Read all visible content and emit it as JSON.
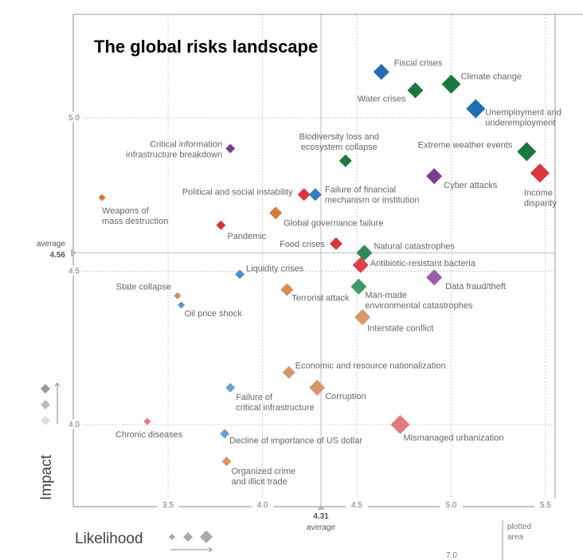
{
  "chart_data": {
    "type": "scatter",
    "title": "The global risks landscape",
    "xlabel": "Likelihood",
    "ylabel": "Impact",
    "xlim": [
      3.0,
      5.6
    ],
    "ylim": [
      3.75,
      5.25
    ],
    "x_ticks": [
      "3.5",
      "4.0",
      "4.5",
      "5.0",
      "5.5"
    ],
    "y_ticks": [
      "5.0",
      "4.5",
      "4.0"
    ],
    "grid": true,
    "averages": {
      "x": {
        "value": 4.31,
        "value_label": "4.31",
        "label": "average"
      },
      "y": {
        "value": 4.56,
        "value_label": "4.56",
        "label": "average"
      }
    },
    "legend": {
      "plotted_area": "plotted\narea",
      "stray_value": "7.0"
    },
    "points": [
      {
        "name": "Fiscal crises",
        "x": 4.63,
        "y": 5.15,
        "color": "#1f6db5",
        "size": 4
      },
      {
        "name": "Climate change",
        "x": 5.0,
        "y": 5.11,
        "color": "#1a7a3e",
        "size": 5
      },
      {
        "name": "Water crises",
        "x": 4.81,
        "y": 5.09,
        "color": "#1a7a3e",
        "size": 4
      },
      {
        "name": "Unemployment and\nunderemployment",
        "x": 5.13,
        "y": 5.03,
        "color": "#1f6db5",
        "size": 5
      },
      {
        "name": "Extreme weather events",
        "x": 5.4,
        "y": 4.89,
        "color": "#1a7a3e",
        "size": 5
      },
      {
        "name": "Income\ndisparity",
        "x": 5.47,
        "y": 4.82,
        "color": "#d9373d",
        "size": 5
      },
      {
        "name": "Cyber attacks",
        "x": 4.91,
        "y": 4.81,
        "color": "#7b3f8c",
        "size": 4
      },
      {
        "name": "Biodiversity loss and\necosystem collapse",
        "x": 4.44,
        "y": 4.86,
        "color": "#1a7a3e",
        "size": 3
      },
      {
        "name": "Critical information\ninfrastructure breakdown",
        "x": 3.83,
        "y": 4.9,
        "color": "#7b3f8c",
        "size": 2
      },
      {
        "name": "Weapons of\nmass destruction",
        "x": 3.15,
        "y": 4.74,
        "color": "#d97a3d",
        "size": 1
      },
      {
        "name": "Political and social instability",
        "x": 4.22,
        "y": 4.75,
        "color": "#d9373d",
        "size": 3
      },
      {
        "name": "Failure of financial\nmechanism or institution",
        "x": 4.28,
        "y": 4.75,
        "color": "#2f7cc4",
        "size": 3
      },
      {
        "name": "Global governance failure",
        "x": 4.07,
        "y": 4.69,
        "color": "#d97a3d",
        "size": 3
      },
      {
        "name": "Pandemic",
        "x": 3.78,
        "y": 4.65,
        "color": "#d9373d",
        "size": 2
      },
      {
        "name": "Food crises",
        "x": 4.39,
        "y": 4.59,
        "color": "#d9373d",
        "size": 3
      },
      {
        "name": "Natural catastrophes",
        "x": 4.54,
        "y": 4.56,
        "color": "#2e8b57",
        "size": 4
      },
      {
        "name": "Antibiotic-resistant bacteria",
        "x": 4.52,
        "y": 4.52,
        "color": "#dd4048",
        "size": 4
      },
      {
        "name": "Liquidity crises",
        "x": 3.88,
        "y": 4.49,
        "color": "#4a8fd0",
        "size": 2
      },
      {
        "name": "Data fraud/theft",
        "x": 4.91,
        "y": 4.48,
        "color": "#9a5aa8",
        "size": 4
      },
      {
        "name": "Man-made\nenvironmental catastrophes",
        "x": 4.51,
        "y": 4.45,
        "color": "#3d9a66",
        "size": 4
      },
      {
        "name": "State collapse",
        "x": 3.55,
        "y": 4.42,
        "color": "#d98a55",
        "size": 1
      },
      {
        "name": "Terrorist attack",
        "x": 4.13,
        "y": 4.44,
        "color": "#d98a55",
        "size": 3
      },
      {
        "name": "Oil price shock",
        "x": 3.57,
        "y": 4.39,
        "color": "#5a95d0",
        "size": 1
      },
      {
        "name": "Interstate conflict",
        "x": 4.53,
        "y": 4.35,
        "color": "#d9956a",
        "size": 4
      },
      {
        "name": "Economic and resource nationalization",
        "x": 4.14,
        "y": 4.17,
        "color": "#d9956a",
        "size": 3
      },
      {
        "name": "Corruption",
        "x": 4.29,
        "y": 4.12,
        "color": "#d9956a",
        "size": 4
      },
      {
        "name": "Failure of\ncritical infrastructure",
        "x": 3.83,
        "y": 4.12,
        "color": "#6a9fd8",
        "size": 2
      },
      {
        "name": "Chronic diseases",
        "x": 3.39,
        "y": 4.01,
        "color": "#e07a80",
        "size": 1
      },
      {
        "name": "Mismanaged urbanization",
        "x": 4.73,
        "y": 4.0,
        "color": "#e07a80",
        "size": 5
      },
      {
        "name": "Decline of importance of US dollar",
        "x": 3.8,
        "y": 3.97,
        "color": "#6a9fd8",
        "size": 2
      },
      {
        "name": "Organized crime\nand illicit trade",
        "x": 3.81,
        "y": 3.88,
        "color": "#d9956a",
        "size": 2
      }
    ]
  }
}
